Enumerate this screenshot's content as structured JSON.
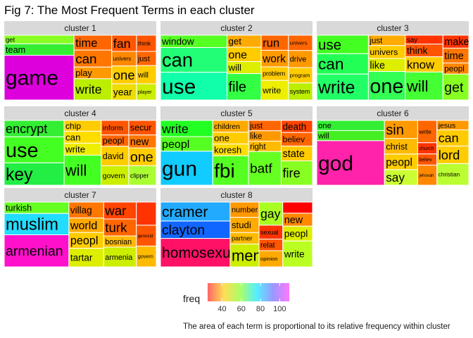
{
  "chart_data": {
    "type": "treemap",
    "title": "Fig 7: The Most Frequent Terms in each cluster",
    "caption": "The area of each term is proportional to its relative frequency within cluster",
    "legend": {
      "title": "freq",
      "ticks": [
        40,
        60,
        80,
        100
      ],
      "range": [
        25,
        110
      ],
      "colors": [
        "#ff6666",
        "#ffdd55",
        "#aaff66",
        "#55eeff",
        "#9999ff",
        "#ff77ff"
      ]
    },
    "panels": [
      {
        "name": "cluster 1",
        "terms": [
          {
            "term": "get",
            "freq": 15,
            "color": "#88ff22"
          },
          {
            "term": "team",
            "freq": 20,
            "color": "#33ee33"
          },
          {
            "term": "game",
            "freq": 78,
            "color": "#dd00dd"
          },
          {
            "term": "time",
            "freq": 14,
            "color": "#ff6600"
          },
          {
            "term": "can",
            "freq": 16,
            "color": "#ff7700"
          },
          {
            "term": "play",
            "freq": 11,
            "color": "#ff9900"
          },
          {
            "term": "write",
            "freq": 20,
            "color": "#bbee00"
          },
          {
            "term": "fan",
            "freq": 10,
            "color": "#ff5500"
          },
          {
            "term": "univers",
            "freq": 9,
            "color": "#ff8800"
          },
          {
            "term": "one",
            "freq": 11,
            "color": "#ffcc00"
          },
          {
            "term": "year",
            "freq": 10,
            "color": "#eedd00"
          },
          {
            "term": "think",
            "freq": 8,
            "color": "#ff5500"
          },
          {
            "term": "just",
            "freq": 7,
            "color": "#ff6600"
          },
          {
            "term": "will",
            "freq": 9,
            "color": "#ffcc00"
          },
          {
            "term": "player",
            "freq": 8,
            "color": "#ccee00"
          }
        ]
      },
      {
        "name": "cluster 2",
        "terms": [
          {
            "term": "window",
            "freq": 20,
            "color": "#55ff22"
          },
          {
            "term": "can",
            "freq": 40,
            "color": "#22ff77"
          },
          {
            "term": "use",
            "freq": 45,
            "color": "#11ffaa"
          },
          {
            "term": "get",
            "freq": 10,
            "color": "#ffaa00"
          },
          {
            "term": "one",
            "freq": 12,
            "color": "#ffcc00"
          },
          {
            "term": "will",
            "freq": 10,
            "color": "#ddee00"
          },
          {
            "term": "file",
            "freq": 22,
            "color": "#33ff44"
          },
          {
            "term": "run",
            "freq": 10,
            "color": "#ff6600"
          },
          {
            "term": "work",
            "freq": 11,
            "color": "#ff9900"
          },
          {
            "term": "problem",
            "freq": 9,
            "color": "#ffcc00"
          },
          {
            "term": "write",
            "freq": 13,
            "color": "#eeee00"
          },
          {
            "term": "univers",
            "freq": 9,
            "color": "#ff6600"
          },
          {
            "term": "drive",
            "freq": 10,
            "color": "#ff9900"
          },
          {
            "term": "program",
            "freq": 9,
            "color": "#ffcc00"
          },
          {
            "term": "system",
            "freq": 10,
            "color": "#bbee00"
          }
        ]
      },
      {
        "name": "cluster 3",
        "terms": [
          {
            "term": "use",
            "freq": 20,
            "color": "#44ff22"
          },
          {
            "term": "can",
            "freq": 22,
            "color": "#22ff55"
          },
          {
            "term": "write",
            "freq": 28,
            "color": "#22ff66"
          },
          {
            "term": "just",
            "freq": 8,
            "color": "#ffaa00"
          },
          {
            "term": "univers",
            "freq": 10,
            "color": "#ffcc00"
          },
          {
            "term": "like",
            "freq": 10,
            "color": "#ddee00"
          },
          {
            "term": "one",
            "freq": 22,
            "color": "#33ff55"
          },
          {
            "term": "say",
            "freq": 7,
            "color": "#ff3300"
          },
          {
            "term": "think",
            "freq": 10,
            "color": "#ff5500"
          },
          {
            "term": "know",
            "freq": 12,
            "color": "#ffcc00"
          },
          {
            "term": "will",
            "freq": 22,
            "color": "#44ff33"
          },
          {
            "term": "make",
            "freq": 7,
            "color": "#ff3300"
          },
          {
            "term": "time",
            "freq": 8,
            "color": "#ff7700"
          },
          {
            "term": "peopl",
            "freq": 6,
            "color": "#ff8800"
          },
          {
            "term": "get",
            "freq": 14,
            "color": "#88ff22"
          }
        ]
      },
      {
        "name": "cluster 4",
        "terms": [
          {
            "term": "encrypt",
            "freq": 22,
            "color": "#33ee33"
          },
          {
            "term": "use",
            "freq": 35,
            "color": "#44ff22"
          },
          {
            "term": "key",
            "freq": 30,
            "color": "#22ee44"
          },
          {
            "term": "chip",
            "freq": 9,
            "color": "#ffcc00"
          },
          {
            "term": "can",
            "freq": 10,
            "color": "#ffdd00"
          },
          {
            "term": "write",
            "freq": 10,
            "color": "#eeee00"
          },
          {
            "term": "will",
            "freq": 25,
            "color": "#44ff22"
          },
          {
            "term": "inform",
            "freq": 9,
            "color": "#ff5500"
          },
          {
            "term": "peopl",
            "freq": 7,
            "color": "#ff6600"
          },
          {
            "term": "david",
            "freq": 12,
            "color": "#ffcc00"
          },
          {
            "term": "govern",
            "freq": 12,
            "color": "#ccee00"
          },
          {
            "term": "secur",
            "freq": 9,
            "color": "#ff5500"
          },
          {
            "term": "new",
            "freq": 8,
            "color": "#ff7700"
          },
          {
            "term": "one",
            "freq": 11,
            "color": "#ffcc00"
          },
          {
            "term": "clipper",
            "freq": 12,
            "color": "#aaff33"
          }
        ]
      },
      {
        "name": "cluster 5",
        "terms": [
          {
            "term": "write",
            "freq": 20,
            "color": "#22ff22"
          },
          {
            "term": "peopl",
            "freq": 18,
            "color": "#55ff22"
          },
          {
            "term": "gun",
            "freq": 42,
            "color": "#11ccff"
          },
          {
            "term": "children",
            "freq": 10,
            "color": "#ffaa00"
          },
          {
            "term": "one",
            "freq": 10,
            "color": "#ffcc00"
          },
          {
            "term": "koresh",
            "freq": 10,
            "color": "#ffdd00"
          },
          {
            "term": "fbi",
            "freq": 25,
            "color": "#55ff22"
          },
          {
            "term": "just",
            "freq": 8,
            "color": "#ff6600"
          },
          {
            "term": "like",
            "freq": 8,
            "color": "#ff9900"
          },
          {
            "term": "right",
            "freq": 8,
            "color": "#ffbb00"
          },
          {
            "term": "batf",
            "freq": 26,
            "color": "#66ff22"
          },
          {
            "term": "death",
            "freq": 9,
            "color": "#ff4400"
          },
          {
            "term": "believ",
            "freq": 10,
            "color": "#ff6600"
          },
          {
            "term": "state",
            "freq": 11,
            "color": "#ffcc00"
          },
          {
            "term": "fire",
            "freq": 18,
            "color": "#88ff22"
          }
        ]
      },
      {
        "name": "cluster 6",
        "terms": [
          {
            "term": "one",
            "freq": 16,
            "color": "#33ee33"
          },
          {
            "term": "will",
            "freq": 16,
            "color": "#44ee22"
          },
          {
            "term": "god",
            "freq": 70,
            "color": "#ff22aa"
          },
          {
            "term": "sin",
            "freq": 14,
            "color": "#ff9900"
          },
          {
            "term": "christ",
            "freq": 12,
            "color": "#ffbb00"
          },
          {
            "term": "peopl",
            "freq": 12,
            "color": "#ffcc00"
          },
          {
            "term": "say",
            "freq": 12,
            "color": "#ccff33"
          },
          {
            "term": "write",
            "freq": 10,
            "color": "#ff6600"
          },
          {
            "term": "church",
            "freq": 5,
            "color": "#ff3300"
          },
          {
            "term": "believ",
            "freq": 5,
            "color": "#ff5500"
          },
          {
            "term": "jehovah",
            "freq": 9,
            "color": "#ff8800"
          },
          {
            "term": "jesus",
            "freq": 7,
            "color": "#ff9900"
          },
          {
            "term": "can",
            "freq": 12,
            "color": "#ffcc00"
          },
          {
            "term": "lord",
            "freq": 13,
            "color": "#ffcc00"
          },
          {
            "term": "christian",
            "freq": 16,
            "color": "#bbff33"
          }
        ]
      },
      {
        "name": "cluster 7",
        "terms": [
          {
            "term": "turkish",
            "freq": 16,
            "color": "#66ff22"
          },
          {
            "term": "muslim",
            "freq": 30,
            "color": "#22ddff"
          },
          {
            "term": "armenian",
            "freq": 45,
            "color": "#ff11cc"
          },
          {
            "term": "villag",
            "freq": 12,
            "color": "#ff7700"
          },
          {
            "term": "world",
            "freq": 11,
            "color": "#ffaa00"
          },
          {
            "term": "peopl",
            "freq": 12,
            "color": "#ffcc00"
          },
          {
            "term": "tartar",
            "freq": 14,
            "color": "#ddee00"
          },
          {
            "term": "war",
            "freq": 12,
            "color": "#ff4400"
          },
          {
            "term": "turk",
            "freq": 12,
            "color": "#ff6600"
          },
          {
            "term": "bosnian",
            "freq": 8,
            "color": "#ffbb00"
          },
          {
            "term": "armenia",
            "freq": 14,
            "color": "#ccee00"
          },
          {
            "term": "",
            "freq": 10,
            "color": "#ff3300"
          },
          {
            "term": "genocid",
            "freq": 9,
            "color": "#ff5500"
          },
          {
            "term": "govern",
            "freq": 9,
            "color": "#ffbb00"
          }
        ]
      },
      {
        "name": "cluster 8",
        "terms": [
          {
            "term": "cramer",
            "freq": 24,
            "color": "#22aaff"
          },
          {
            "term": "clayton",
            "freq": 22,
            "color": "#1166ff"
          },
          {
            "term": "homosexu",
            "freq": 36,
            "color": "#ff1166"
          },
          {
            "term": "number",
            "freq": 8,
            "color": "#ff9900"
          },
          {
            "term": "studi",
            "freq": 8,
            "color": "#ffaa00"
          },
          {
            "term": "partner",
            "freq": 6,
            "color": "#ffbb00"
          },
          {
            "term": "men",
            "freq": 12,
            "color": "#ccee00"
          },
          {
            "term": "gay",
            "freq": 10,
            "color": "#aaff22"
          },
          {
            "term": "sexual",
            "freq": 6,
            "color": "#ff3300"
          },
          {
            "term": "relat",
            "freq": 5,
            "color": "#ff5500"
          },
          {
            "term": "opinion",
            "freq": 7,
            "color": "#ffaa00"
          },
          {
            "term": "",
            "freq": 6,
            "color": "#ff0000"
          },
          {
            "term": "new",
            "freq": 7,
            "color": "#ff8800"
          },
          {
            "term": "peopl",
            "freq": 8,
            "color": "#ddee00"
          },
          {
            "term": "write",
            "freq": 14,
            "color": "#bbff22"
          }
        ]
      }
    ]
  }
}
